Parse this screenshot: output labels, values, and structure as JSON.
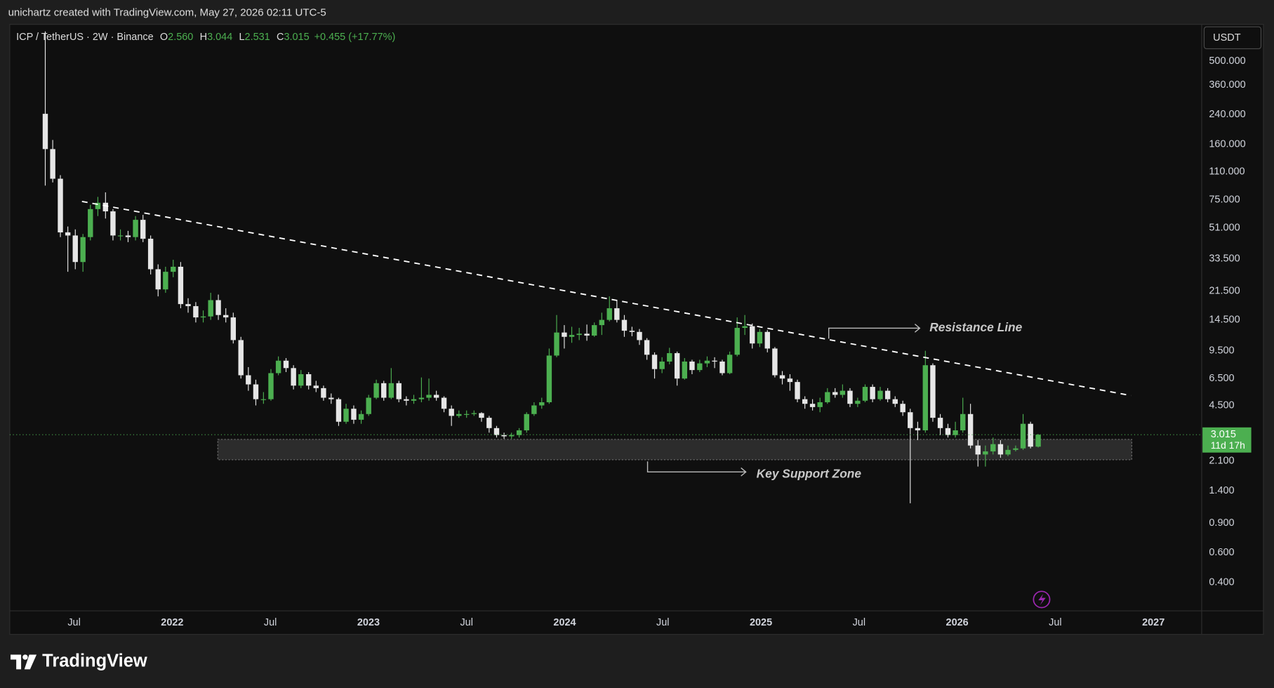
{
  "attribution": "unichartz created with TradingView.com, May 27, 2026 02:11 UTC-5",
  "brand": "TradingView",
  "chart_data": {
    "type": "candlestick",
    "log_scale": true,
    "grid": false,
    "currency": "USDT",
    "xlim": [
      2021.172,
      2027.242
    ],
    "xticks": [
      {
        "value": 2021.5,
        "label": "Jul"
      },
      2022,
      {
        "value": 2022.5,
        "label": "Jul"
      },
      2023,
      {
        "value": 2023.5,
        "label": "Jul"
      },
      2024,
      {
        "value": 2024.5,
        "label": "Jul"
      },
      2025,
      {
        "value": 2025.5,
        "label": "Jul"
      },
      2026,
      {
        "value": 2026.5,
        "label": "Jul"
      },
      2027
    ],
    "ylim": [
      0.271,
      826
    ],
    "yticks": [
      {
        "value": 0.4,
        "label": "0.400"
      },
      {
        "value": 0.6,
        "label": "0.600"
      },
      {
        "value": 0.9,
        "label": "0.900"
      },
      {
        "value": 1.4,
        "label": "1.400"
      },
      {
        "value": 2.1,
        "label": "2.100"
      },
      {
        "value": 4.5,
        "label": "4.500"
      },
      {
        "value": 6.5,
        "label": "6.500"
      },
      {
        "value": 9.5,
        "label": "9.500"
      },
      {
        "value": 14.5,
        "label": "14.500"
      },
      {
        "value": 21.5,
        "label": "21.500"
      },
      {
        "value": 33.5,
        "label": "33.500"
      },
      {
        "value": 51,
        "label": "51.000"
      },
      {
        "value": 75,
        "label": "75.000"
      },
      {
        "value": 110,
        "label": "110.000"
      },
      {
        "value": 160,
        "label": "160.000"
      },
      {
        "value": 240,
        "label": "240.000"
      },
      {
        "value": 360,
        "label": "360.000"
      },
      {
        "value": 500,
        "label": "500.000"
      }
    ],
    "x": [
      2021.353,
      2021.391,
      2021.43,
      2021.468,
      2021.506,
      2021.545,
      2021.583,
      2021.621,
      2021.66,
      2021.698,
      2021.736,
      2021.775,
      2021.813,
      2021.851,
      2021.89,
      2021.928,
      2021.966,
      2022.005,
      2022.043,
      2022.081,
      2022.12,
      2022.158,
      2022.196,
      2022.235,
      2022.273,
      2022.311,
      2022.35,
      2022.388,
      2022.426,
      2022.465,
      2022.503,
      2022.541,
      2022.58,
      2022.618,
      2022.656,
      2022.695,
      2022.733,
      2022.771,
      2022.81,
      2022.848,
      2022.886,
      2022.925,
      2022.963,
      2023.001,
      2023.04,
      2023.078,
      2023.116,
      2023.155,
      2023.193,
      2023.231,
      2023.27,
      2023.308,
      2023.346,
      2023.385,
      2023.423,
      2023.461,
      2023.5,
      2023.538,
      2023.576,
      2023.615,
      2023.653,
      2023.691,
      2023.729,
      2023.768,
      2023.806,
      2023.844,
      2023.883,
      2023.921,
      2023.959,
      2023.998,
      2024.036,
      2024.074,
      2024.113,
      2024.151,
      2024.189,
      2024.228,
      2024.266,
      2024.304,
      2024.343,
      2024.381,
      2024.419,
      2024.458,
      2024.496,
      2024.534,
      2024.573,
      2024.611,
      2024.649,
      2024.688,
      2024.726,
      2024.764,
      2024.803,
      2024.841,
      2024.879,
      2024.918,
      2024.956,
      2024.994,
      2025.033,
      2025.071,
      2025.109,
      2025.148,
      2025.186,
      2025.224,
      2025.263,
      2025.301,
      2025.339,
      2025.378,
      2025.416,
      2025.454,
      2025.493,
      2025.531,
      2025.569,
      2025.608,
      2025.646,
      2025.684,
      2025.723,
      2025.761,
      2025.799,
      2025.838,
      2025.876,
      2025.914,
      2025.953,
      2025.991,
      2026.029,
      2026.068,
      2026.106,
      2026.144,
      2026.183,
      2026.221,
      2026.259,
      2026.298,
      2026.336,
      2026.374,
      2026.413
    ],
    "series": [
      {
        "name": "ICP / TetherUS · 2W · Binance",
        "up_color": "#4caf50",
        "down_color": "#e6e6e6",
        "ohlc_keys": [
          "O",
          "H",
          "L",
          "C"
        ],
        "ohlc_labels": [
          "2.560",
          "3.044",
          "2.531",
          "3.015"
        ],
        "change_label": "+0.455 (+17.77%)",
        "countdown": "11d 17h",
        "ohlc": [
          [
            243,
            750,
            91,
            150
          ],
          [
            150,
            170,
            95,
            100
          ],
          [
            100,
            105,
            45,
            48
          ],
          [
            48,
            52,
            28,
            46
          ],
          [
            46,
            50,
            29,
            32
          ],
          [
            32,
            47,
            28,
            45
          ],
          [
            45,
            70,
            43,
            66
          ],
          [
            66,
            78,
            60,
            72
          ],
          [
            72,
            83,
            58,
            64
          ],
          [
            64,
            66,
            43,
            46
          ],
          [
            46,
            50,
            43,
            46
          ],
          [
            46,
            49,
            42,
            45
          ],
          [
            45,
            60,
            43,
            57
          ],
          [
            57,
            61,
            42,
            44
          ],
          [
            44,
            46,
            27,
            29
          ],
          [
            29,
            31,
            20,
            22
          ],
          [
            22,
            30,
            21,
            28
          ],
          [
            28,
            33,
            26,
            30
          ],
          [
            30,
            32,
            17,
            18
          ],
          [
            18,
            19.5,
            16,
            17.5
          ],
          [
            17.5,
            18.5,
            14,
            15
          ],
          [
            15,
            16.5,
            14,
            15.2
          ],
          [
            15.2,
            21,
            14.5,
            19
          ],
          [
            19,
            20.5,
            14.5,
            15.5
          ],
          [
            15.5,
            17,
            14,
            15
          ],
          [
            15,
            16,
            10.5,
            11
          ],
          [
            11,
            11.5,
            6.5,
            6.8
          ],
          [
            6.8,
            7.6,
            5.5,
            6
          ],
          [
            6,
            6.4,
            4.5,
            4.9
          ],
          [
            4.9,
            5.4,
            4.6,
            4.9
          ],
          [
            4.9,
            7.4,
            4.8,
            7
          ],
          [
            7,
            8.8,
            6.8,
            8.3
          ],
          [
            8.3,
            8.6,
            7.1,
            7.5
          ],
          [
            7.5,
            7.8,
            5.6,
            5.9
          ],
          [
            5.9,
            7.3,
            5.7,
            6.9
          ],
          [
            6.9,
            7.1,
            5.6,
            5.9
          ],
          [
            5.9,
            6.3,
            5.4,
            5.7
          ],
          [
            5.7,
            5.9,
            4.8,
            5
          ],
          [
            5,
            5.3,
            4.6,
            4.9
          ],
          [
            4.9,
            5,
            3.4,
            3.6
          ],
          [
            3.6,
            4.6,
            3.5,
            4.3
          ],
          [
            4.3,
            4.5,
            3.5,
            3.7
          ],
          [
            3.7,
            4.2,
            3.5,
            4
          ],
          [
            4,
            5.2,
            3.9,
            5
          ],
          [
            5,
            6.4,
            4.9,
            6.1
          ],
          [
            6.1,
            6.3,
            4.8,
            5
          ],
          [
            5,
            7.5,
            4.9,
            6.1
          ],
          [
            6.1,
            6.3,
            4.7,
            4.9
          ],
          [
            4.9,
            5.1,
            4.5,
            4.8
          ],
          [
            4.8,
            5.2,
            4.6,
            4.9
          ],
          [
            4.9,
            6.6,
            4.7,
            5
          ],
          [
            5,
            6.5,
            4.8,
            5.2
          ],
          [
            5.2,
            5.5,
            4.8,
            5
          ],
          [
            5,
            5.1,
            4.1,
            4.3
          ],
          [
            4.3,
            4.5,
            3.4,
            3.9
          ],
          [
            3.9,
            4.2,
            3.8,
            4
          ],
          [
            4,
            4.2,
            3.8,
            4
          ],
          [
            4,
            4.2,
            3.9,
            4.05
          ],
          [
            4.05,
            4.1,
            3.6,
            3.8
          ],
          [
            3.8,
            3.9,
            3.1,
            3.3
          ],
          [
            3.3,
            3.4,
            2.9,
            3
          ],
          [
            3,
            3.1,
            2.85,
            2.95
          ],
          [
            2.95,
            3.1,
            2.85,
            3
          ],
          [
            3,
            3.3,
            2.9,
            3.2
          ],
          [
            3.2,
            4.1,
            3.1,
            4
          ],
          [
            4,
            4.7,
            3.9,
            4.5
          ],
          [
            4.5,
            5,
            4.3,
            4.7
          ],
          [
            4.7,
            9.8,
            4.6,
            8.9
          ],
          [
            8.9,
            15.5,
            8.7,
            12.2
          ],
          [
            12.2,
            13.5,
            9.8,
            11.5
          ],
          [
            11.5,
            13.2,
            10.6,
            11.8
          ],
          [
            11.8,
            13,
            11,
            12
          ],
          [
            12,
            13.6,
            10.9,
            11.7
          ],
          [
            11.7,
            14,
            11.5,
            13.5
          ],
          [
            13.5,
            16,
            11.8,
            14.5
          ],
          [
            14.5,
            20,
            14.2,
            17
          ],
          [
            17,
            19,
            14,
            14.5
          ],
          [
            14.5,
            15.5,
            11.5,
            12.5
          ],
          [
            12.5,
            13.2,
            11.6,
            12.3
          ],
          [
            12.3,
            12.8,
            10.3,
            11
          ],
          [
            11,
            11.3,
            8.4,
            9
          ],
          [
            9,
            9.3,
            6.5,
            7.4
          ],
          [
            7.4,
            8.7,
            7,
            8.2
          ],
          [
            8.2,
            9.9,
            7.9,
            9.2
          ],
          [
            9.2,
            9.4,
            5.9,
            6.5
          ],
          [
            6.5,
            8.6,
            6.4,
            8.2
          ],
          [
            8.2,
            8.4,
            6.9,
            7.3
          ],
          [
            7.3,
            8.4,
            7.1,
            8
          ],
          [
            8,
            8.8,
            7.6,
            8.3
          ],
          [
            8.3,
            8.7,
            7.5,
            8.2
          ],
          [
            8.2,
            8.4,
            6.8,
            7
          ],
          [
            7,
            9.4,
            6.9,
            9
          ],
          [
            9,
            15,
            8.8,
            13
          ],
          [
            13,
            15.5,
            11.8,
            13.3
          ],
          [
            13.3,
            13.8,
            9.8,
            10.5
          ],
          [
            10.5,
            12.8,
            10,
            12.3
          ],
          [
            12.3,
            12.6,
            9.3,
            9.8
          ],
          [
            9.8,
            10,
            6.6,
            6.8
          ],
          [
            6.8,
            7.2,
            6,
            6.5
          ],
          [
            6.5,
            6.9,
            5.5,
            6.2
          ],
          [
            6.2,
            6.4,
            4.7,
            4.9
          ],
          [
            4.9,
            5.1,
            4.3,
            4.6
          ],
          [
            4.6,
            4.9,
            4.2,
            4.4
          ],
          [
            4.4,
            5,
            4.1,
            4.7
          ],
          [
            4.7,
            5.7,
            4.6,
            5.4
          ],
          [
            5.4,
            5.7,
            5,
            5.2
          ],
          [
            5.2,
            6,
            5,
            5.5
          ],
          [
            5.5,
            5.7,
            4.4,
            4.6
          ],
          [
            4.6,
            5,
            4.4,
            4.8
          ],
          [
            4.8,
            6,
            4.7,
            5.8
          ],
          [
            5.8,
            6,
            4.7,
            4.9
          ],
          [
            4.9,
            5.8,
            4.8,
            5.5
          ],
          [
            5.5,
            5.7,
            4.7,
            4.9
          ],
          [
            4.9,
            5.1,
            4.4,
            4.6
          ],
          [
            4.6,
            4.8,
            3.9,
            4.1
          ],
          [
            4.1,
            4.3,
            1.18,
            3.3
          ],
          [
            3.3,
            3.6,
            2.8,
            3.2
          ],
          [
            3.2,
            9.5,
            3.1,
            7.8
          ],
          [
            7.8,
            8,
            3.6,
            3.8
          ],
          [
            3.8,
            4,
            3,
            3.3
          ],
          [
            3.3,
            3.5,
            2.9,
            3
          ],
          [
            3,
            3.6,
            2.9,
            3.2
          ],
          [
            3.2,
            5,
            3.1,
            4
          ],
          [
            4,
            4.6,
            2.5,
            2.6
          ],
          [
            2.6,
            2.8,
            1.95,
            2.3
          ],
          [
            2.3,
            2.6,
            1.95,
            2.4
          ],
          [
            2.4,
            2.9,
            2.3,
            2.65
          ],
          [
            2.65,
            2.8,
            2.2,
            2.3
          ],
          [
            2.3,
            2.6,
            2.25,
            2.45
          ],
          [
            2.45,
            2.6,
            2.4,
            2.5
          ],
          [
            2.5,
            4,
            2.45,
            3.5
          ],
          [
            3.5,
            3.6,
            2.5,
            2.56
          ],
          [
            2.56,
            3.044,
            2.531,
            3.015
          ]
        ]
      }
    ],
    "resistance": {
      "label": "Resistance Line",
      "color": "#ffffff",
      "x": [
        2021.54,
        2026.886
      ],
      "y": [
        73.3,
        5.15
      ]
    },
    "support_zone": {
      "label": "Key Support Zone",
      "x": [
        2022.232,
        2026.89
      ],
      "y": [
        2.14,
        2.83
      ]
    }
  }
}
